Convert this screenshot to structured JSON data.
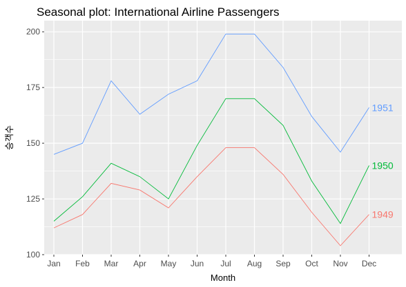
{
  "chart_data": {
    "type": "line",
    "title": "Seasonal plot: International Airline Passengers",
    "xlabel": "Month",
    "ylabel": "승객수",
    "categories": [
      "Jan",
      "Feb",
      "Mar",
      "Apr",
      "May",
      "Jun",
      "Jul",
      "Aug",
      "Sep",
      "Oct",
      "Nov",
      "Dec"
    ],
    "ylim": [
      100,
      205
    ],
    "yticks": [
      100,
      125,
      150,
      175,
      200
    ],
    "grid": true,
    "series": [
      {
        "name": "1949",
        "color": "#F8766D",
        "values": [
          112,
          118,
          132,
          129,
          121,
          135,
          148,
          148,
          136,
          119,
          104,
          118
        ]
      },
      {
        "name": "1950",
        "color": "#00BA38",
        "values": [
          115,
          126,
          141,
          135,
          125,
          149,
          170,
          170,
          158,
          133,
          114,
          140
        ]
      },
      {
        "name": "1951",
        "color": "#619CFF",
        "values": [
          145,
          150,
          178,
          163,
          172,
          178,
          199,
          199,
          184,
          162,
          146,
          166
        ]
      }
    ]
  }
}
